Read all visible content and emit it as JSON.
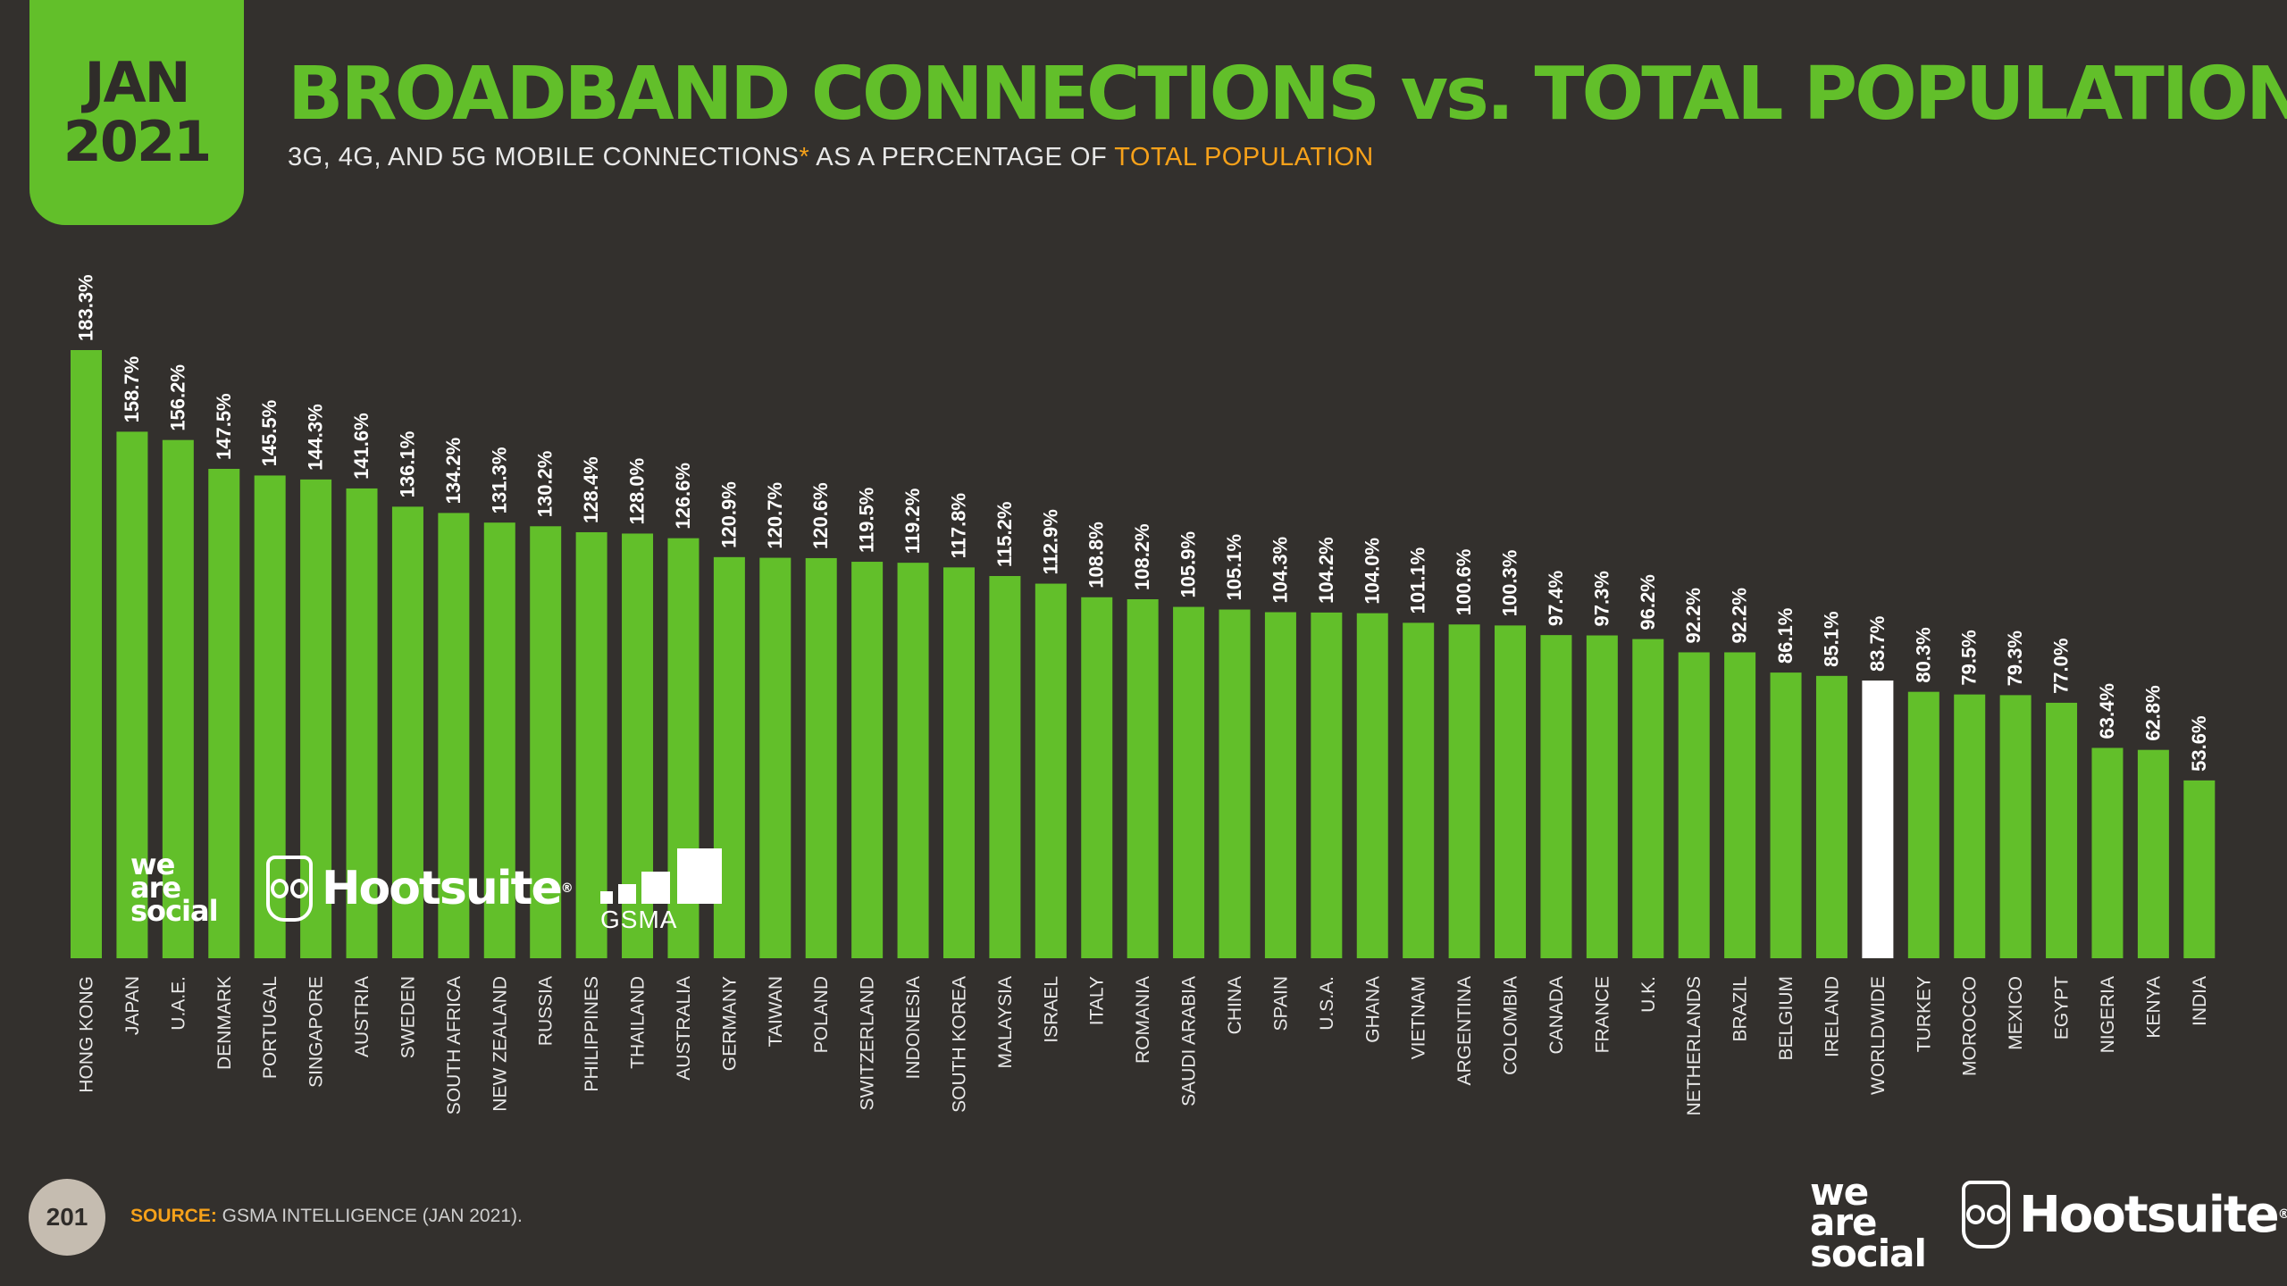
{
  "header": {
    "date_month": "JAN",
    "date_year": "2021",
    "title": "BROADBAND CONNECTIONS vs. TOTAL POPULATION",
    "subtitle_main": "3G, 4G, AND 5G MOBILE CONNECTIONS",
    "subtitle_asterisk": "*",
    "subtitle_mid": " AS A PERCENTAGE OF ",
    "subtitle_highlight": "TOTAL POPULATION"
  },
  "footer": {
    "page_number": "201",
    "source_label": "SOURCE:",
    "source_text": " GSMA INTELLIGENCE (JAN 2021)."
  },
  "logos": {
    "was_line1": "we",
    "was_line2": "are",
    "was_line3": "social",
    "hootsuite": "Hootsuite",
    "gsma": "GSMA"
  },
  "colors": {
    "background": "#33302d",
    "bar": "#62bf2a",
    "highlight_bar": "#ffffff",
    "accent": "#f6a11a",
    "badge": "#62bf2a"
  },
  "chart_data": {
    "type": "bar",
    "title": "BROADBAND CONNECTIONS vs. TOTAL POPULATION",
    "ylabel": "",
    "xlabel": "",
    "ylim": [
      0,
      183.3
    ],
    "highlight": "WORLDWIDE",
    "categories": [
      "HONG KONG",
      "JAPAN",
      "U.A.E.",
      "DENMARK",
      "PORTUGAL",
      "SINGAPORE",
      "AUSTRIA",
      "SWEDEN",
      "SOUTH AFRICA",
      "NEW ZEALAND",
      "RUSSIA",
      "PHILIPPINES",
      "THAILAND",
      "AUSTRALIA",
      "GERMANY",
      "TAIWAN",
      "POLAND",
      "SWITZERLAND",
      "INDONESIA",
      "SOUTH KOREA",
      "MALAYSIA",
      "ISRAEL",
      "ITALY",
      "ROMANIA",
      "SAUDI ARABIA",
      "CHINA",
      "SPAIN",
      "U.S.A.",
      "GHANA",
      "VIETNAM",
      "ARGENTINA",
      "COLOMBIA",
      "CANADA",
      "FRANCE",
      "U.K.",
      "NETHERLANDS",
      "BRAZIL",
      "BELGIUM",
      "IRELAND",
      "WORLDWIDE",
      "TURKEY",
      "MOROCCO",
      "MEXICO",
      "EGYPT",
      "NIGERIA",
      "KENYA",
      "INDIA"
    ],
    "values": [
      183.3,
      158.7,
      156.2,
      147.5,
      145.5,
      144.3,
      141.6,
      136.1,
      134.2,
      131.3,
      130.2,
      128.4,
      128.0,
      126.6,
      120.9,
      120.7,
      120.6,
      119.5,
      119.2,
      117.8,
      115.2,
      112.9,
      108.8,
      108.2,
      105.9,
      105.1,
      104.3,
      104.2,
      104.0,
      101.1,
      100.6,
      100.3,
      97.4,
      97.3,
      96.2,
      92.2,
      92.2,
      86.1,
      85.1,
      83.7,
      80.3,
      79.5,
      79.3,
      77.0,
      63.4,
      62.8,
      53.6
    ],
    "labels": [
      "183.3%",
      "158.7%",
      "156.2%",
      "147.5%",
      "145.5%",
      "144.3%",
      "141.6%",
      "136.1%",
      "134.2%",
      "131.3%",
      "130.2%",
      "128.4%",
      "128.0%",
      "126.6%",
      "120.9%",
      "120.7%",
      "120.6%",
      "119.5%",
      "119.2%",
      "117.8%",
      "115.2%",
      "112.9%",
      "108.8%",
      "108.2%",
      "105.9%",
      "105.1%",
      "104.3%",
      "104.2%",
      "104.0%",
      "101.1%",
      "100.6%",
      "100.3%",
      "97.4%",
      "97.3%",
      "96.2%",
      "92.2%",
      "92.2%",
      "86.1%",
      "85.1%",
      "83.7%",
      "80.3%",
      "79.5%",
      "79.3%",
      "77.0%",
      "63.4%",
      "62.8%",
      "53.6%"
    ]
  }
}
